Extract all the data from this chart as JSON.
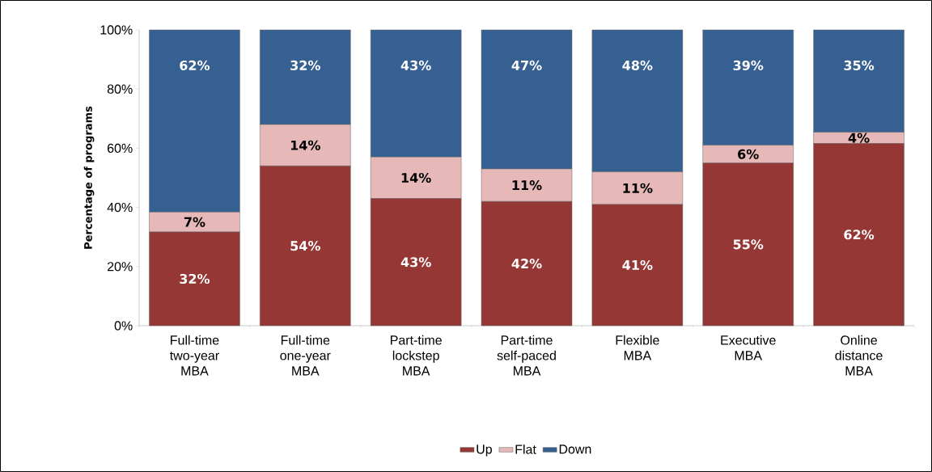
{
  "chart_data": {
    "type": "bar",
    "stacked": true,
    "ylabel": "Percentage of programs",
    "categories": [
      "Full-time two-year MBA",
      "Full-time one-year MBA",
      "Part-time lockstep MBA",
      "Part-time self-paced MBA",
      "Flexible MBA",
      "Executive MBA",
      "Online distance MBA"
    ],
    "series": [
      {
        "name": "Up",
        "color": "#953735",
        "values": [
          31.7,
          54,
          43,
          42,
          41,
          55,
          61.6
        ],
        "value_labels": [
          "32%",
          "54%",
          "43%",
          "42%",
          "41%",
          "55%",
          "62%"
        ]
      },
      {
        "name": "Flat",
        "color": "#e6b9b8",
        "values": [
          6.7,
          14,
          14,
          11,
          11,
          6,
          3.8
        ],
        "value_labels": [
          "7%",
          "14%",
          "14%",
          "11%",
          "11%",
          "6%",
          "4%"
        ]
      },
      {
        "name": "Down",
        "color": "#376092",
        "values": [
          61.6,
          32,
          43,
          47,
          48,
          39,
          34.6
        ],
        "value_labels": [
          "62%",
          "32%",
          "43%",
          "47%",
          "48%",
          "39%",
          "35%"
        ]
      }
    ],
    "ylim": [
      0,
      100
    ],
    "yticks": [
      {
        "value": 0,
        "label": "0%"
      },
      {
        "value": 20,
        "label": "20%"
      },
      {
        "value": 40,
        "label": "40%"
      },
      {
        "value": 60,
        "label": "60%"
      },
      {
        "value": 80,
        "label": "80%"
      },
      {
        "value": 100,
        "label": "100%"
      }
    ],
    "legend": "bottom"
  }
}
